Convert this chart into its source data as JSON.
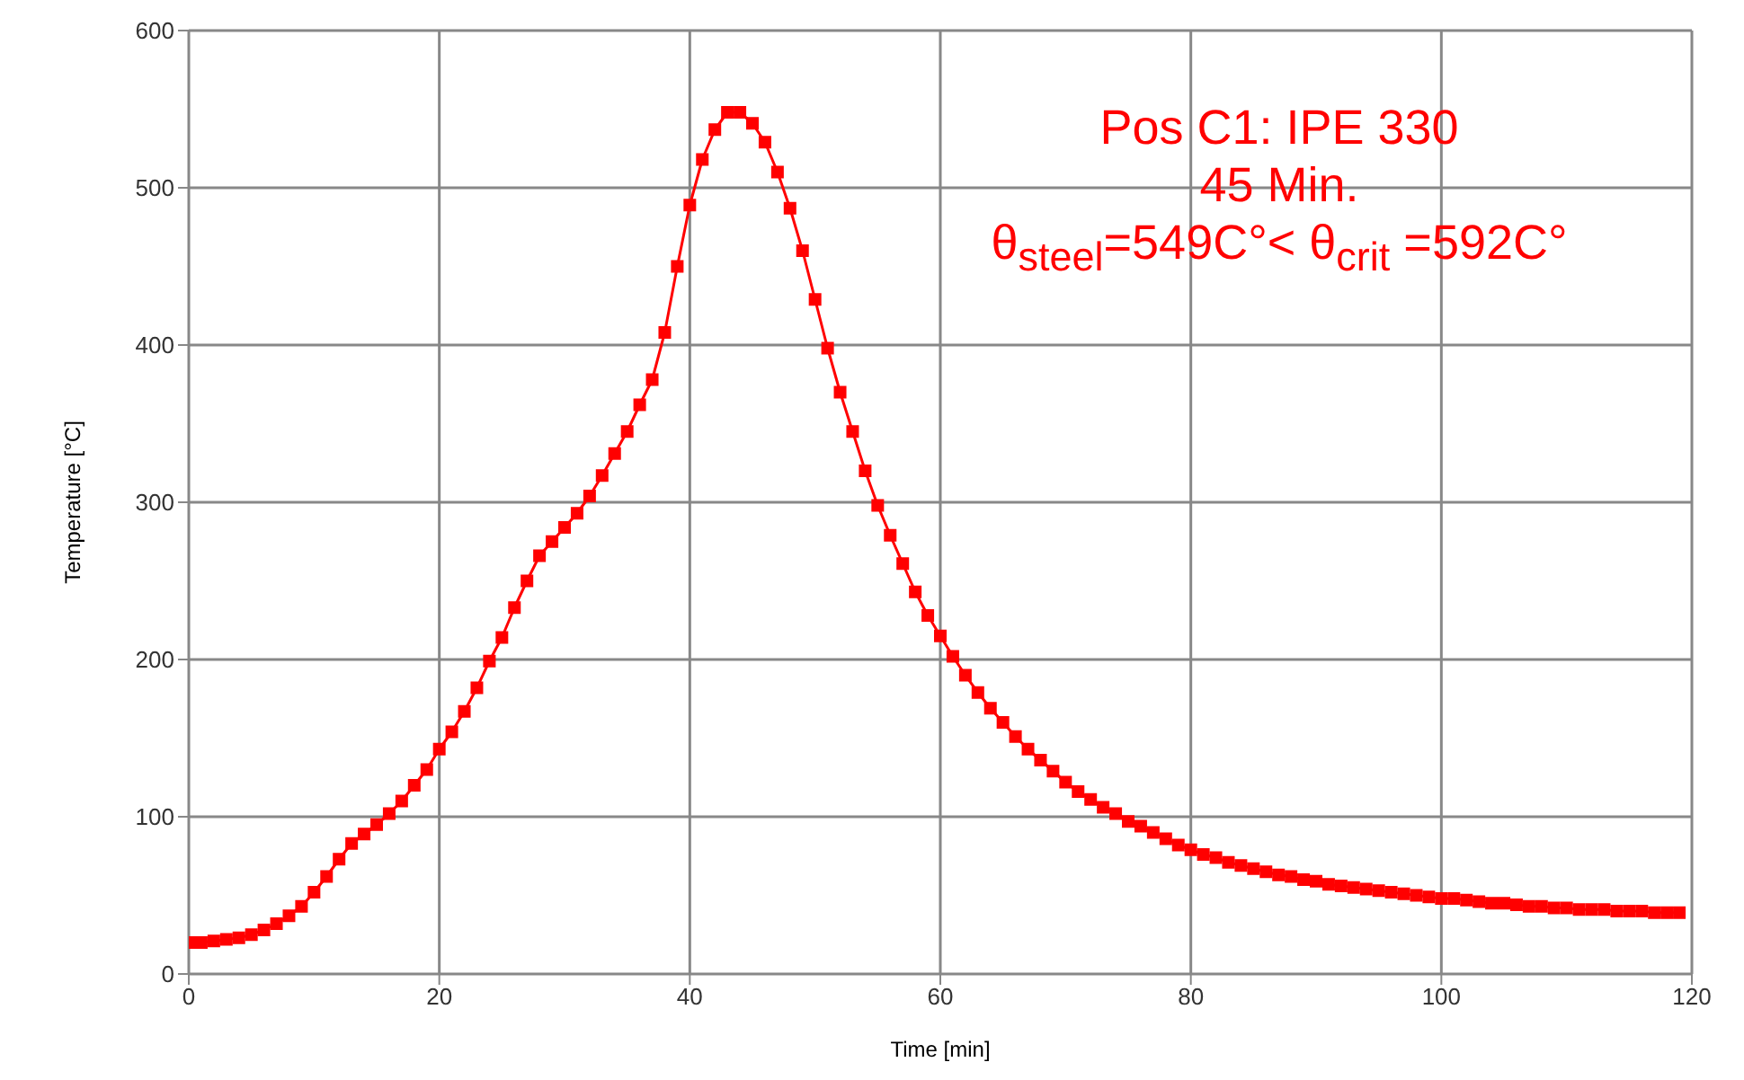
{
  "chart_data": {
    "type": "line",
    "xlabel": "Time [min]",
    "ylabel": "Temperature [°C]",
    "annotations": [
      "Pos C1: IPE 330",
      "45 Min.",
      "θ$_{steel}$=549C°< θ$_{crit}$ =592C°"
    ],
    "x": [
      0,
      1,
      2,
      3,
      4,
      5,
      6,
      7,
      8,
      9,
      10,
      11,
      12,
      13,
      14,
      15,
      16,
      17,
      18,
      19,
      20,
      21,
      22,
      23,
      24,
      25,
      26,
      27,
      28,
      29,
      30,
      31,
      32,
      33,
      34,
      35,
      36,
      37,
      38,
      39,
      40,
      41,
      42,
      43,
      44,
      45,
      46,
      47,
      48,
      49,
      50,
      51,
      52,
      53,
      54,
      55,
      56,
      57,
      58,
      59,
      60,
      61,
      62,
      63,
      64,
      65,
      66,
      67,
      68,
      69,
      70,
      71,
      72,
      73,
      74,
      75,
      76,
      77,
      78,
      79,
      80,
      81,
      82,
      83,
      84,
      85,
      86,
      87,
      88,
      89,
      90,
      91,
      92,
      93,
      94,
      95,
      96,
      97,
      98,
      99,
      100,
      101,
      102,
      103,
      104,
      105,
      106,
      107,
      108,
      109,
      110,
      111,
      112,
      113,
      114,
      115,
      116,
      117,
      118,
      119
    ],
    "series": [
      {
        "color": "#ff0000",
        "values": [
          20,
          20,
          21,
          22,
          23,
          25,
          28,
          32,
          37,
          43,
          52,
          62,
          73,
          83,
          89,
          95,
          102,
          110,
          120,
          130,
          143,
          154,
          167,
          182,
          199,
          214,
          233,
          250,
          266,
          275,
          284,
          293,
          304,
          317,
          331,
          345,
          362,
          378,
          408,
          450,
          489,
          518,
          537,
          548,
          548,
          541,
          529,
          510,
          487,
          460,
          429,
          398,
          370,
          345,
          320,
          298,
          279,
          261,
          243,
          228,
          215,
          202,
          190,
          179,
          169,
          160,
          151,
          143,
          136,
          129,
          122,
          116,
          111,
          106,
          102,
          97,
          94,
          90,
          86,
          82,
          79,
          76,
          74,
          71,
          69,
          67,
          65,
          63,
          62,
          60,
          59,
          57,
          56,
          55,
          54,
          53,
          52,
          51,
          50,
          49,
          48,
          48,
          47,
          46,
          45,
          45,
          44,
          43,
          43,
          42,
          42,
          41,
          41,
          41,
          40,
          40,
          40,
          39,
          39,
          39
        ]
      }
    ],
    "xlim": [
      0,
      120
    ],
    "xticks": [
      0,
      20,
      40,
      60,
      80,
      100,
      120
    ],
    "ylim": [
      0,
      600
    ],
    "yticks": [
      0,
      100,
      200,
      300,
      400,
      500,
      600
    ],
    "grid": true,
    "marker": "square",
    "line_style": "solid"
  }
}
